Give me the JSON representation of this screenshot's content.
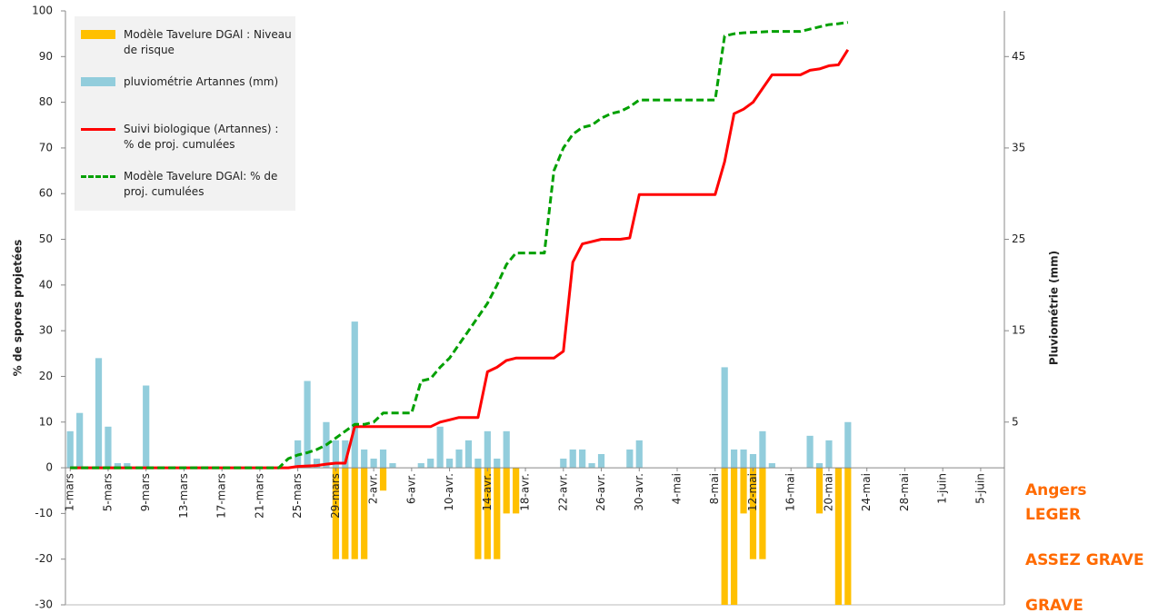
{
  "chart_data": {
    "type": "bar-line",
    "ylabel": "% de spores projetées",
    "y2label": "Pluviométrie (mm)",
    "annotations": [
      "Angers",
      "LEGER",
      "ASSEZ GRAVE",
      "GRAVE"
    ],
    "ylim": [
      -30,
      100
    ],
    "yticks": [
      -30,
      -20,
      -10,
      0,
      10,
      20,
      30,
      40,
      50,
      60,
      70,
      80,
      90,
      100
    ],
    "y2lim": [
      -15,
      50
    ],
    "y2ticks": [
      5,
      15,
      25,
      35,
      45
    ],
    "legend": "upper left",
    "categories": [
      "1-mars",
      null,
      null,
      null,
      "5-mars",
      null,
      null,
      null,
      "9-mars",
      null,
      null,
      null,
      "13-mars",
      null,
      null,
      null,
      "17-mars",
      null,
      null,
      null,
      "21-mars",
      null,
      null,
      null,
      "25-mars",
      null,
      null,
      null,
      "29-mars",
      null,
      null,
      null,
      "2-avr.",
      null,
      null,
      null,
      "6-avr.",
      null,
      null,
      null,
      "10-avr.",
      null,
      null,
      null,
      "14-avr.",
      null,
      null,
      null,
      "18-avr.",
      null,
      null,
      null,
      "22-avr.",
      null,
      null,
      null,
      "26-avr.",
      null,
      null,
      null,
      "30-avr.",
      null,
      null,
      null,
      "4-mai",
      null,
      null,
      null,
      "8-mai",
      null,
      null,
      null,
      "12-mai",
      null,
      null,
      null,
      "16-mai",
      null,
      null,
      null,
      "20-mai",
      null,
      null,
      null,
      "24-mai",
      null,
      null,
      null,
      "28-mai",
      null,
      null,
      null,
      "1-juin",
      null,
      null,
      null,
      "5-juin",
      null,
      null
    ],
    "series": [
      {
        "name": "Modèle Tavelure DGAl : Niveau de risque",
        "kind": "bar",
        "color": "#ffc000",
        "values": [
          null,
          null,
          null,
          null,
          null,
          null,
          null,
          null,
          null,
          null,
          null,
          null,
          null,
          null,
          null,
          null,
          null,
          null,
          null,
          null,
          null,
          null,
          null,
          null,
          null,
          null,
          null,
          null,
          -20,
          -20,
          -20,
          -20,
          null,
          -5,
          null,
          null,
          null,
          null,
          null,
          null,
          null,
          null,
          null,
          -20,
          -20,
          -20,
          -10,
          -10,
          null,
          null,
          null,
          null,
          null,
          null,
          null,
          null,
          null,
          null,
          null,
          null,
          null,
          null,
          null,
          null,
          null,
          null,
          null,
          null,
          null,
          -30,
          -30,
          -10,
          -20,
          -20,
          null,
          null,
          null,
          null,
          null,
          -10,
          null,
          -30,
          -30,
          null,
          null,
          null,
          null,
          null,
          null,
          null,
          null,
          null,
          null,
          null,
          null,
          null,
          null,
          null,
          null
        ]
      },
      {
        "name": "pluviométrie Artannes (mm)",
        "kind": "bar",
        "axis": "y2",
        "color": "#92cddc",
        "values": [
          4,
          6,
          0,
          12,
          4.5,
          0.5,
          0.5,
          0,
          9,
          0,
          0,
          0,
          0,
          0,
          0,
          0,
          0,
          0,
          0,
          0,
          0,
          0,
          0,
          0,
          3,
          9.5,
          1,
          5,
          3,
          3,
          16,
          2,
          1,
          2,
          0.5,
          0,
          0,
          0.5,
          1,
          4.5,
          1,
          2,
          3,
          1,
          4,
          1,
          4,
          0,
          0,
          0,
          0,
          0,
          1,
          2,
          2,
          0.5,
          1.5,
          0,
          0,
          2,
          3,
          0,
          0,
          0,
          0,
          0,
          0,
          0,
          0,
          11,
          2,
          2,
          1.5,
          4,
          0.5,
          0,
          0,
          0,
          3.5,
          0.5,
          3,
          0,
          5,
          0,
          0,
          0,
          0,
          0,
          0,
          0,
          0,
          0,
          0,
          0,
          0,
          0,
          0,
          0,
          0
        ]
      },
      {
        "name": "Suivi biologique (Artannes) : % de proj. cumulées",
        "kind": "line",
        "color": "#ff0000",
        "values": [
          0,
          0,
          0,
          0,
          0,
          0,
          0,
          0,
          0,
          0,
          0,
          0,
          0,
          0,
          0,
          0,
          0,
          0,
          0,
          0,
          0,
          0,
          0,
          0,
          0.3,
          0.4,
          0.5,
          0.8,
          1,
          1,
          9,
          9,
          9,
          9,
          9,
          9,
          9,
          9,
          9,
          10,
          10.5,
          11,
          11,
          11,
          21,
          22,
          23.5,
          24,
          24,
          24,
          24,
          24,
          25.5,
          45,
          49,
          49.5,
          50,
          50,
          50,
          50.3,
          59.8,
          59.8,
          59.8,
          59.8,
          59.8,
          59.8,
          59.8,
          59.8,
          59.8,
          67,
          77.5,
          78.5,
          80,
          83,
          86,
          86,
          86,
          86,
          87,
          87.3,
          88,
          88.2,
          91.5,
          null,
          null,
          null,
          null,
          null,
          null,
          null,
          null,
          null,
          null,
          null,
          null,
          null,
          null,
          null,
          null
        ]
      },
      {
        "name": "Modèle Tavelure DGAl: % de proj. cumulées",
        "kind": "line",
        "dashed": true,
        "color": "#00a000",
        "values": [
          0,
          0,
          0,
          0,
          0,
          0,
          0,
          0,
          0,
          0,
          0,
          0,
          0,
          0,
          0,
          0,
          0,
          0,
          0,
          0,
          0,
          0,
          0,
          2,
          2.8,
          3.3,
          4,
          5,
          6.5,
          8,
          9.5,
          9.5,
          10,
          12,
          12,
          12,
          12,
          19,
          19.5,
          22,
          24,
          27,
          30,
          33,
          36,
          40,
          44.5,
          47,
          47,
          47,
          47,
          65,
          70,
          73,
          74.5,
          75,
          76.5,
          77.5,
          78,
          79,
          80.5,
          80.5,
          80.5,
          80.5,
          80.5,
          80.5,
          80.5,
          80.5,
          80.5,
          94.5,
          95,
          95.2,
          95.3,
          95.4,
          95.5,
          95.5,
          95.5,
          95.5,
          96,
          96.5,
          97,
          97.2,
          97.5,
          null,
          null,
          null,
          null,
          null,
          null,
          null,
          null,
          null,
          null,
          null,
          null,
          null,
          null,
          null,
          null
        ]
      }
    ]
  }
}
